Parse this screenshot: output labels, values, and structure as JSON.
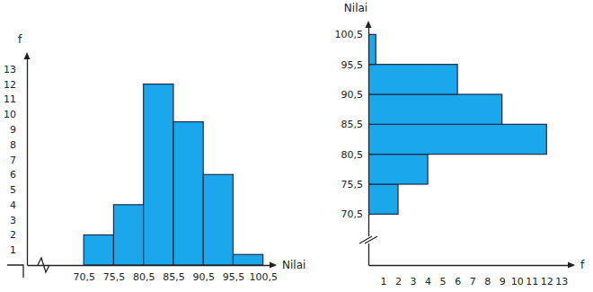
{
  "chart_data": [
    {
      "type": "histogram",
      "xlabel": "Nilai",
      "ylabel": "f",
      "bins": [
        70.5,
        75.5,
        80.5,
        85.5,
        90.5,
        95.5,
        100.5
      ],
      "values": [
        2,
        4,
        12,
        9.5,
        6,
        0.7
      ],
      "color": "#1aa7ec",
      "xlim": [
        61,
        102.5
      ],
      "xticks": [
        {
          "value": 70.5,
          "label": "70,5"
        },
        {
          "value": 75.5,
          "label": "75,5"
        },
        {
          "value": 80.5,
          "label": "80,5"
        },
        {
          "value": 85.5,
          "label": "85,5"
        },
        {
          "value": 90.5,
          "label": "90,5"
        },
        {
          "value": 95.5,
          "label": "95,5"
        },
        {
          "value": 100.5,
          "label": "100,5"
        }
      ],
      "ylim": [
        0,
        14
      ],
      "yticks": [
        1,
        2,
        3,
        4,
        5,
        6,
        7,
        8,
        9,
        10,
        11,
        12,
        13
      ]
    },
    {
      "type": "histogram",
      "orientation": "horizontal",
      "xlabel": "f",
      "ylabel": "Nilai",
      "bins": [
        70.5,
        75.5,
        80.5,
        85.5,
        90.5,
        95.5,
        100.5
      ],
      "values": [
        2,
        4,
        12,
        9,
        6,
        0.5
      ],
      "color": "#1aa7ec",
      "xlim": [
        0,
        13.8
      ],
      "xticks": [
        1,
        2,
        3,
        4,
        5,
        6,
        7,
        8,
        9,
        10,
        11,
        12,
        13
      ],
      "ylim": [
        62,
        102.5
      ],
      "yticks": [
        {
          "value": 70.5,
          "label": "70,5"
        },
        {
          "value": 75.5,
          "label": "75,5"
        },
        {
          "value": 80.5,
          "label": "80,5"
        },
        {
          "value": 85.5,
          "label": "85,5"
        },
        {
          "value": 90.5,
          "label": "90,5"
        },
        {
          "value": 95.5,
          "label": "95,5"
        },
        {
          "value": 100.5,
          "label": "100,5"
        }
      ]
    }
  ]
}
